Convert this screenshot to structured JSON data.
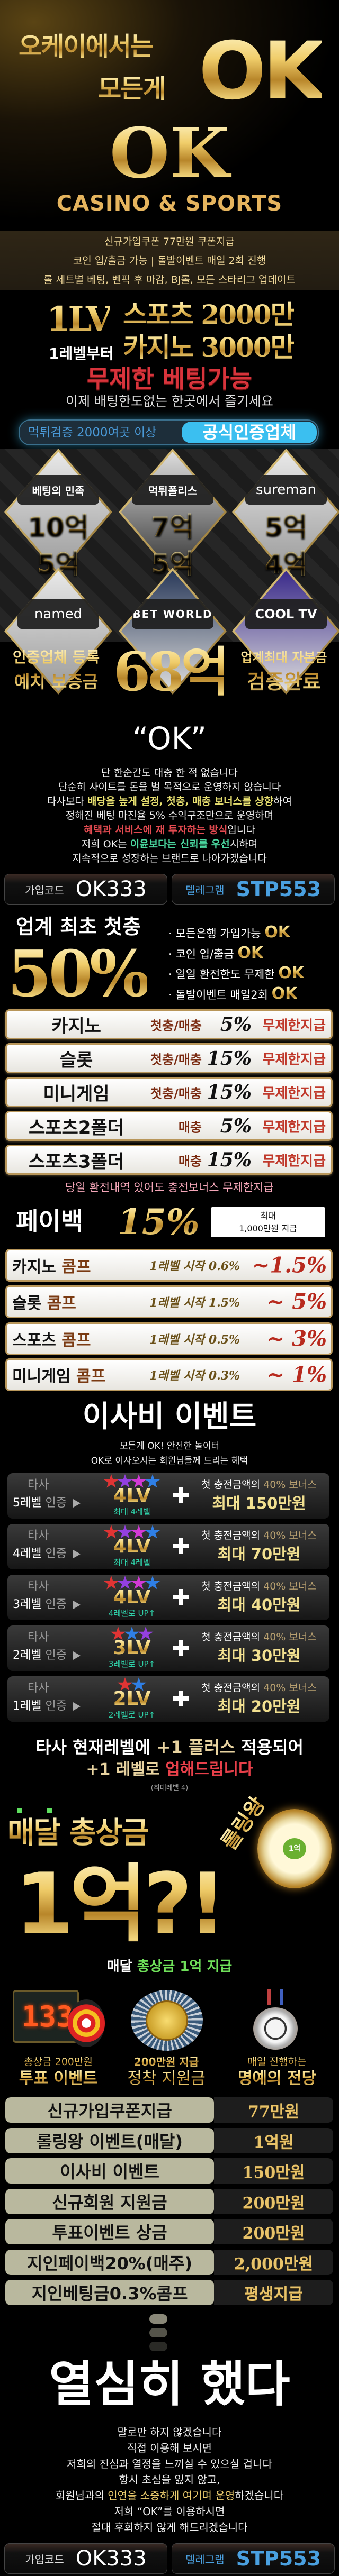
{
  "hero": {
    "line1": "오케이에서는",
    "line2": "모든게",
    "ok_big": "OK",
    "logo": "OK",
    "tagline": "CASINO & SPORTS"
  },
  "band": {
    "lines": [
      "신규가입쿠폰 77만원 쿠폰지급",
      "코인 입/출금 가능 | 돌발이벤트 매일 2회 진행",
      "롤 세트별 베팅, 벤픽 후 마감, BJ롤, 모든 스타리그 업데이트"
    ]
  },
  "level": {
    "badge": "1LV",
    "sub": "1레벨부터",
    "sports": "스포츠 2000만",
    "casino": "카지노 3000만"
  },
  "unlimited": {
    "title": "무제한 베팅가능",
    "sub": "이제 배팅한도없는 한곳에서 즐기세요"
  },
  "verified": {
    "left": "먹튀검증 2000여곳 이상",
    "right": "공식인증업체"
  },
  "partners": [
    {
      "name": "베팅의 민족",
      "amount": "10억"
    },
    {
      "name": "먹튀폴리스",
      "amount": "7억"
    },
    {
      "name": "sureman",
      "amount": "5억"
    },
    {
      "name": "named",
      "amount": "5억"
    },
    {
      "name": "BET WORLD",
      "amount": "5억"
    },
    {
      "name": "COOL TV",
      "amount": "4억"
    }
  ],
  "deposit": {
    "left1": "인증업체 등록",
    "left2": "예치 보증금",
    "amount": "68억",
    "right1": "업계최대 자본금",
    "right2": "검증완료"
  },
  "about": {
    "title": "“OK”",
    "l1": "단 한순간도 대충 한 적 없습니다",
    "l2": "단순히 사이트를 돈을 벌 목적으로 운영하지 않습니다",
    "l3a": "타사보다 ",
    "l3b": "배당을 높게 설정, 첫충, 매충 보너스를 상향",
    "l3c": "하여",
    "l4": "정해진 베팅 마진율 5% 수익구조만으로 운영하며",
    "l5a": "혜택과 서비스에 재 투자하는 방식",
    "l5b": "입니다",
    "l6a": "저희 OK는 ",
    "l6b": "이윤보다는 신뢰를 우선",
    "l6c": "시하며",
    "l7": "지속적으로 성장하는 브랜드로 나아가겠습니다"
  },
  "codes": {
    "code_label": "가입코드",
    "code": "OK333",
    "tg_label": "텔레그램",
    "tg": "STP553"
  },
  "first_deposit": {
    "title": "업계 최초 첫충",
    "percent": "50%",
    "features": [
      {
        "text": "· 모든은행 가입가능",
        "ok": "OK"
      },
      {
        "text": "· 코인 입/출금",
        "ok": "OK"
      },
      {
        "text": "· 일일 환전한도 무제한",
        "ok": "OK"
      },
      {
        "text": "· 돌발이벤트 매일2회",
        "ok": "OK"
      }
    ]
  },
  "bonus_rows": [
    {
      "game": "카지노",
      "type": "첫충/매충",
      "pct": "5%",
      "note": "무제한지급"
    },
    {
      "game": "슬롯",
      "type": "첫충/매충",
      "pct": "15%",
      "note": "무제한지급"
    },
    {
      "game": "미니게임",
      "type": "첫충/매충",
      "pct": "15%",
      "note": "무제한지급"
    },
    {
      "game": "스포츠2폴더",
      "type": "매충",
      "pct": "5%",
      "note": "무제한지급"
    },
    {
      "game": "스포츠3폴더",
      "type": "매충",
      "pct": "15%",
      "note": "무제한지급"
    }
  ],
  "bonus_note": "당일 환전내역 있어도 충전보너스 무제한지급",
  "payback": {
    "label": "페이백",
    "pct": "15%",
    "box1": "최대",
    "box2": "1,000만원 지급"
  },
  "comp_rows": [
    {
      "game": "카지노",
      "comp": "콤프",
      "range": "1레벨 시작 0.6%",
      "max": "~1.5%"
    },
    {
      "game": "슬롯",
      "comp": "콤프",
      "range": "1레벨 시작 1.5%",
      "max": "~ 5%"
    },
    {
      "game": "스포츠",
      "comp": "콤프",
      "range": "1레벨 시작 0.5%",
      "max": "~ 3%"
    },
    {
      "game": "미니게임",
      "comp": "콤프",
      "range": "1레벨 시작 0.3%",
      "max": "~ 1%"
    }
  ],
  "moving": {
    "title": "이사비 이벤트",
    "sub1": "모든게 OK! 안전한 놀이터",
    "sub2": "OK로 이사오시는 회원님들께 드리는 혜택",
    "rows": [
      {
        "from": "타사",
        "level": "5레벨",
        "cert": "인증",
        "lv": "4LV",
        "lv_note": "최대 4레벨",
        "bonus": "첫 충전금액의",
        "bonus_pct": "40% 보너스",
        "max": "최대 150만원",
        "stars": [
          "#e03434",
          "#9440e0",
          "#d33ad6",
          "#2f7fe6"
        ]
      },
      {
        "from": "타사",
        "level": "4레벨",
        "cert": "인증",
        "lv": "4LV",
        "lv_note": "최대 4레벨",
        "bonus": "첫 충전금액의",
        "bonus_pct": "40% 보너스",
        "max": "최대 70만원",
        "stars": [
          "#e03434",
          "#9440e0",
          "#d33ad6",
          "#2f7fe6"
        ]
      },
      {
        "from": "타사",
        "level": "3레벨",
        "cert": "인증",
        "lv": "4LV",
        "lv_note": "4레벨로 UP↑",
        "bonus": "첫 충전금액의",
        "bonus_pct": "40% 보너스",
        "max": "최대 40만원",
        "stars": [
          "#e03434",
          "#9440e0",
          "#d33ad6",
          "#2f7fe6"
        ]
      },
      {
        "from": "타사",
        "level": "2레벨",
        "cert": "인증",
        "lv": "3LV",
        "lv_note": "3레벨로 UP↑",
        "bonus": "첫 충전금액의",
        "bonus_pct": "40% 보너스",
        "max": "최대 30만원",
        "stars": [
          "#e03434",
          "#2f7fe6",
          "#9440e0"
        ]
      },
      {
        "from": "타사",
        "level": "1레벨",
        "cert": "인증",
        "lv": "2LV",
        "lv_note": "2레벨로 UP↑",
        "bonus": "첫 충전금액의",
        "bonus_pct": "40% 보너스",
        "max": "최대 20만원",
        "stars": [
          "#e03434",
          "#2f7fe6"
        ]
      }
    ],
    "note1a": "타사 현재레벨에 ",
    "note1b": "+1 플러스",
    "note1c": " 적용되어",
    "note2a": "+1 레벨로 ",
    "note2b": "업해드립니다",
    "note3": "(최대레벨 4)"
  },
  "rolling": {
    "title": "매달 총상금",
    "big": "1억?!",
    "wheel_label": "롤링왕",
    "wheel_center": "1억",
    "caption_a": "매달 ",
    "caption_b": "총상금 1억 지급"
  },
  "events": [
    {
      "sub": "총상금 200만원",
      "title": "투표 이벤트",
      "scoreboard": "133"
    },
    {
      "sub": "200만원 지급",
      "title": "정착 지원금"
    },
    {
      "sub": "매일 진행하는",
      "title": "명예의 전당"
    }
  ],
  "summary": [
    {
      "label": "신규가입쿠폰지급",
      "value": "77만원"
    },
    {
      "label": "롤링왕 이벤트(매달)",
      "value": "1억원"
    },
    {
      "label": "이사비 이벤트",
      "value": "150만원"
    },
    {
      "label": "신규회원 지원금",
      "value": "200만원"
    },
    {
      "label": "투표이벤트 상금",
      "value": "200만원"
    },
    {
      "label": "지인페이백20%(매주)",
      "value": "2,000만원"
    },
    {
      "label": "지인베팅금0.3%콤프",
      "value": "평생지급"
    }
  ],
  "closing": {
    "title": "열심히 했다",
    "lines": [
      "말로만 하지 않겠습니다",
      "직접 이용해 보시면",
      "저희의 진심과 열정을 느끼실 수 있으실 겁니다",
      "항시 초심을 잃지 않고,"
    ],
    "l5a": "회원님과의 ",
    "l5b": "인연을 소중하게 여기며 운영",
    "l5c": "하겠습니다",
    "l6": "저희 “OK”를 이용하시면",
    "l7": "절대 후회하지 않게 해드리겠습니다"
  },
  "colors": {
    "gold": "#e8c36a",
    "red": "#d8343c",
    "brown": "#7a2a10",
    "teal": "#2fd0a8",
    "blue": "#4aa0e0",
    "summary_tan": "#b9b89e"
  }
}
